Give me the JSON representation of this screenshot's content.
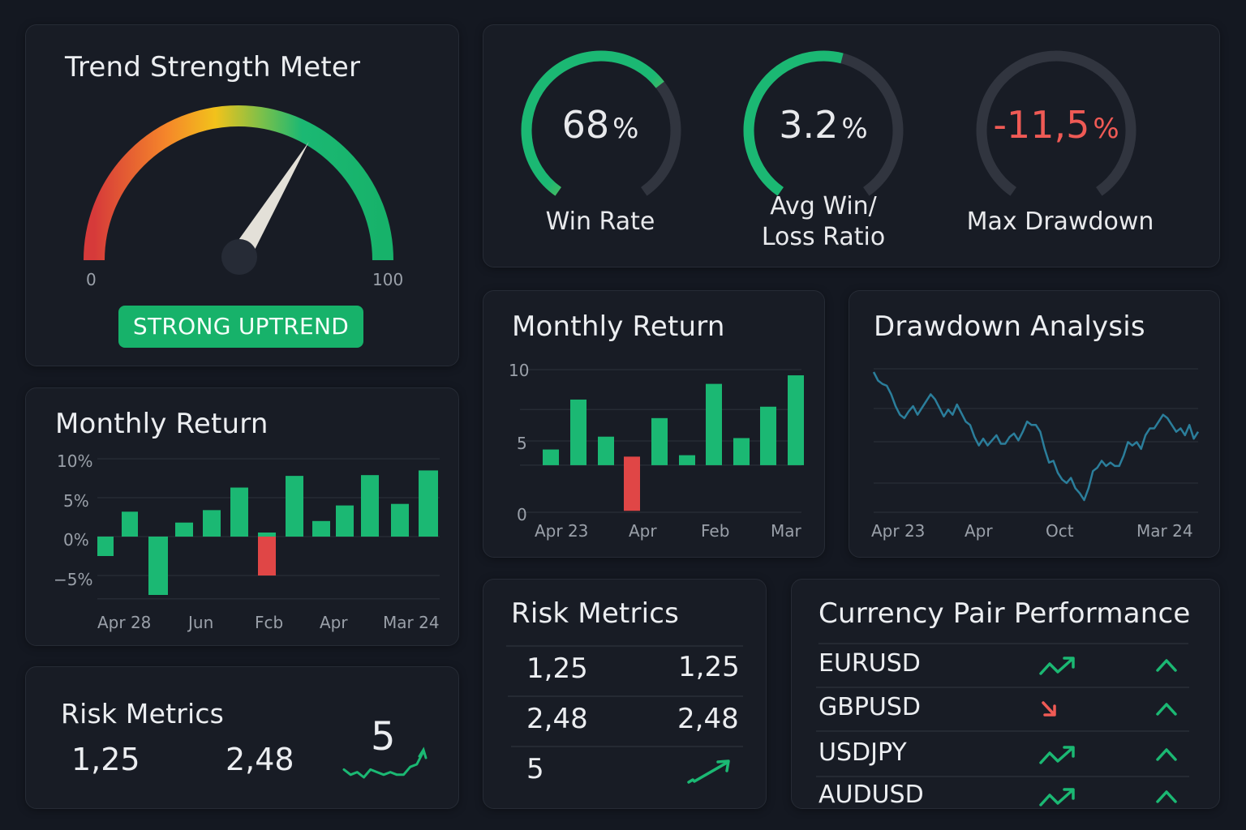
{
  "colors": {
    "background": "#141821",
    "card": "#181c25",
    "positive": "#1bb873",
    "negative": "#e04646",
    "neutral_track": "#31353f",
    "line": "#2b7e9b",
    "warning": "#f2c21b"
  },
  "trend_meter": {
    "title": "Trend Strength Meter",
    "value": 78,
    "min_label": "0",
    "max_label": "100",
    "status": "STRONG UPTREND"
  },
  "kpis": [
    {
      "value": "68",
      "unit": "%",
      "label": "Win Rate",
      "fraction": 0.68,
      "color": "#eceef1"
    },
    {
      "value": "3.2",
      "unit": "%",
      "label_line1": "Avg Win/",
      "label_line2": "Loss Ratio",
      "fraction": 0.55,
      "color": "#eceef1"
    },
    {
      "value": "-11,5",
      "unit": "%",
      "label": "Max Drawdown",
      "fraction": 0.0,
      "color": "#ef5a55"
    }
  ],
  "monthly_return_small": {
    "title": "Monthly Return",
    "y_ticks": [
      "10%",
      "5%",
      "0%",
      "−5%"
    ],
    "x_ticks": [
      "Apr 28",
      "Jun",
      "Fcb",
      "Apr",
      "Mar 24"
    ]
  },
  "monthly_return_large": {
    "title": "Monthly Return",
    "y_ticks": [
      "10",
      "5",
      "0"
    ],
    "x_ticks": [
      "Apr 23",
      "Apr",
      "Feb",
      "Mar"
    ]
  },
  "drawdown": {
    "title": "Drawdown Analysis",
    "x_ticks": [
      "Apr 23",
      "Apr",
      "Oct",
      "Mar 24"
    ]
  },
  "risk_metrics_small": {
    "title": "Risk Metrics",
    "values": [
      "1,25",
      "2,48",
      "5"
    ]
  },
  "risk_metrics_table": {
    "title": "Risk Metrics",
    "rows": [
      {
        "left": "1,25",
        "right": "1,25"
      },
      {
        "left": "2,48",
        "right": "2,48"
      },
      {
        "left": "5",
        "right": "trend-up-arrow"
      }
    ]
  },
  "currency_pairs": {
    "title": "Currency Pair Performance",
    "rows": [
      {
        "pair": "EURUSD",
        "trend": "up",
        "direction": "up"
      },
      {
        "pair": "GBPUSD",
        "trend": "down",
        "direction": "up"
      },
      {
        "pair": "USDJPY",
        "trend": "up",
        "direction": "up"
      },
      {
        "pair": "AUDUSD",
        "trend": "up",
        "direction": "up"
      }
    ]
  },
  "chart_data": [
    {
      "type": "bar",
      "title": "Monthly Return",
      "xlabel": "",
      "ylabel": "",
      "ylim": [
        -7.5,
        10
      ],
      "y_ticks": [
        10,
        5,
        0,
        -5
      ],
      "x_tick_labels": [
        "Apr 28",
        "Jun",
        "Fcb",
        "Apr",
        "Mar 24"
      ],
      "grid": true,
      "values": [
        -2.5,
        3.2,
        -7.5,
        1.8,
        3.4,
        6.3,
        -5.0,
        7.8,
        2.0,
        4.0,
        7.9,
        4.2,
        8.5
      ],
      "colors": [
        "pos",
        "pos",
        "pos",
        "pos",
        "pos",
        "pos",
        "neg",
        "pos",
        "pos",
        "pos",
        "pos",
        "pos",
        "pos"
      ]
    },
    {
      "type": "bar",
      "title": "Monthly Return",
      "xlabel": "",
      "ylabel": "",
      "ylim": [
        0,
        10
      ],
      "y_ticks": [
        10,
        5,
        0
      ],
      "x_tick_labels": [
        "Apr 23",
        "Apr",
        "Feb",
        "Mar"
      ],
      "grid": true,
      "baseline": 3.3,
      "values": [
        4.4,
        7.9,
        5.3,
        3.3,
        6.6,
        4.0,
        9.0,
        5.2,
        7.4,
        9.6
      ],
      "bar_bottoms": [
        3.3,
        3.3,
        3.3,
        0.1,
        3.3,
        3.3,
        3.3,
        3.3,
        3.3,
        3.3
      ],
      "bar_tops_negative": [
        null,
        null,
        null,
        3.9,
        null,
        null,
        null,
        null,
        null,
        null
      ],
      "colors": [
        "pos",
        "pos",
        "pos",
        "neg",
        "pos",
        "pos",
        "pos",
        "pos",
        "pos",
        "pos"
      ]
    },
    {
      "type": "line",
      "title": "Drawdown Analysis",
      "xlabel": "",
      "ylabel": "",
      "x_tick_labels": [
        "Apr 23",
        "Apr",
        "Oct",
        "Mar 24"
      ],
      "grid": true,
      "ylim": [
        0,
        100
      ],
      "values": [
        95,
        90,
        88,
        87,
        82,
        75,
        70,
        68,
        72,
        75,
        70,
        74,
        78,
        82,
        79,
        74,
        69,
        73,
        70,
        76,
        71,
        66,
        64,
        57,
        52,
        56,
        52,
        55,
        58,
        53,
        53,
        57,
        59,
        55,
        60,
        66,
        64,
        64,
        60,
        50,
        42,
        43,
        36,
        32,
        30,
        33,
        27,
        24,
        20,
        27,
        37,
        39,
        43,
        40,
        42,
        40,
        40,
        46,
        54,
        52,
        54,
        50,
        58,
        62,
        62,
        66,
        70,
        68,
        64,
        60,
        62,
        58,
        64,
        56,
        60
      ]
    },
    {
      "type": "line",
      "title": "Risk sparkline",
      "values": [
        3,
        1,
        2,
        0,
        3,
        2,
        1,
        2,
        1,
        1,
        4,
        5,
        10
      ]
    }
  ]
}
